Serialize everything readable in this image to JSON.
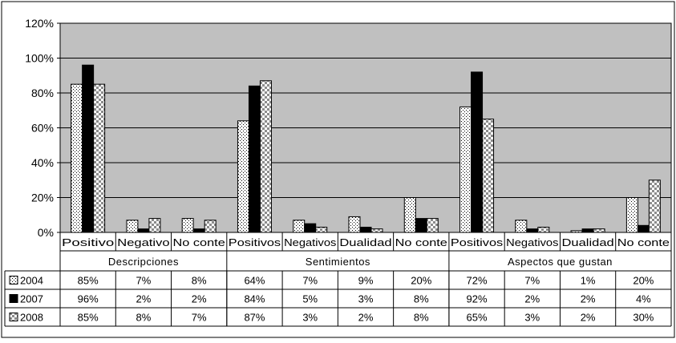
{
  "chart_data": {
    "type": "bar",
    "ylim": [
      0,
      120
    ],
    "y_ticks": [
      "0%",
      "20%",
      "40%",
      "60%",
      "80%",
      "100%",
      "120%"
    ],
    "grid": true,
    "groups": [
      {
        "label": "Descripciones",
        "categories": [
          "Positivo",
          "Negativo",
          "No conte"
        ]
      },
      {
        "label": "Sentimientos",
        "categories": [
          "Positivos",
          "Negativos",
          "Dualidad",
          "No conte"
        ]
      },
      {
        "label": "Aspectos que gustan",
        "categories": [
          "Positivos",
          "Negativos",
          "Dualidad",
          "No conte"
        ]
      }
    ],
    "series": [
      {
        "name": "2004",
        "values": [
          85,
          7,
          8,
          64,
          7,
          9,
          20,
          72,
          7,
          1,
          20
        ],
        "labels": [
          "85%",
          "7%",
          "8%",
          "64%",
          "7%",
          "9%",
          "20%",
          "72%",
          "7%",
          "1%",
          "20%"
        ]
      },
      {
        "name": "2007",
        "values": [
          96,
          2,
          2,
          84,
          5,
          3,
          8,
          92,
          2,
          2,
          4
        ],
        "labels": [
          "96%",
          "2%",
          "2%",
          "84%",
          "5%",
          "3%",
          "8%",
          "92%",
          "2%",
          "2%",
          "4%"
        ]
      },
      {
        "name": "2008",
        "values": [
          85,
          8,
          7,
          87,
          3,
          2,
          8,
          65,
          3,
          2,
          30
        ],
        "labels": [
          "85%",
          "8%",
          "7%",
          "87%",
          "3%",
          "2%",
          "8%",
          "65%",
          "3%",
          "2%",
          "30%"
        ]
      }
    ]
  }
}
